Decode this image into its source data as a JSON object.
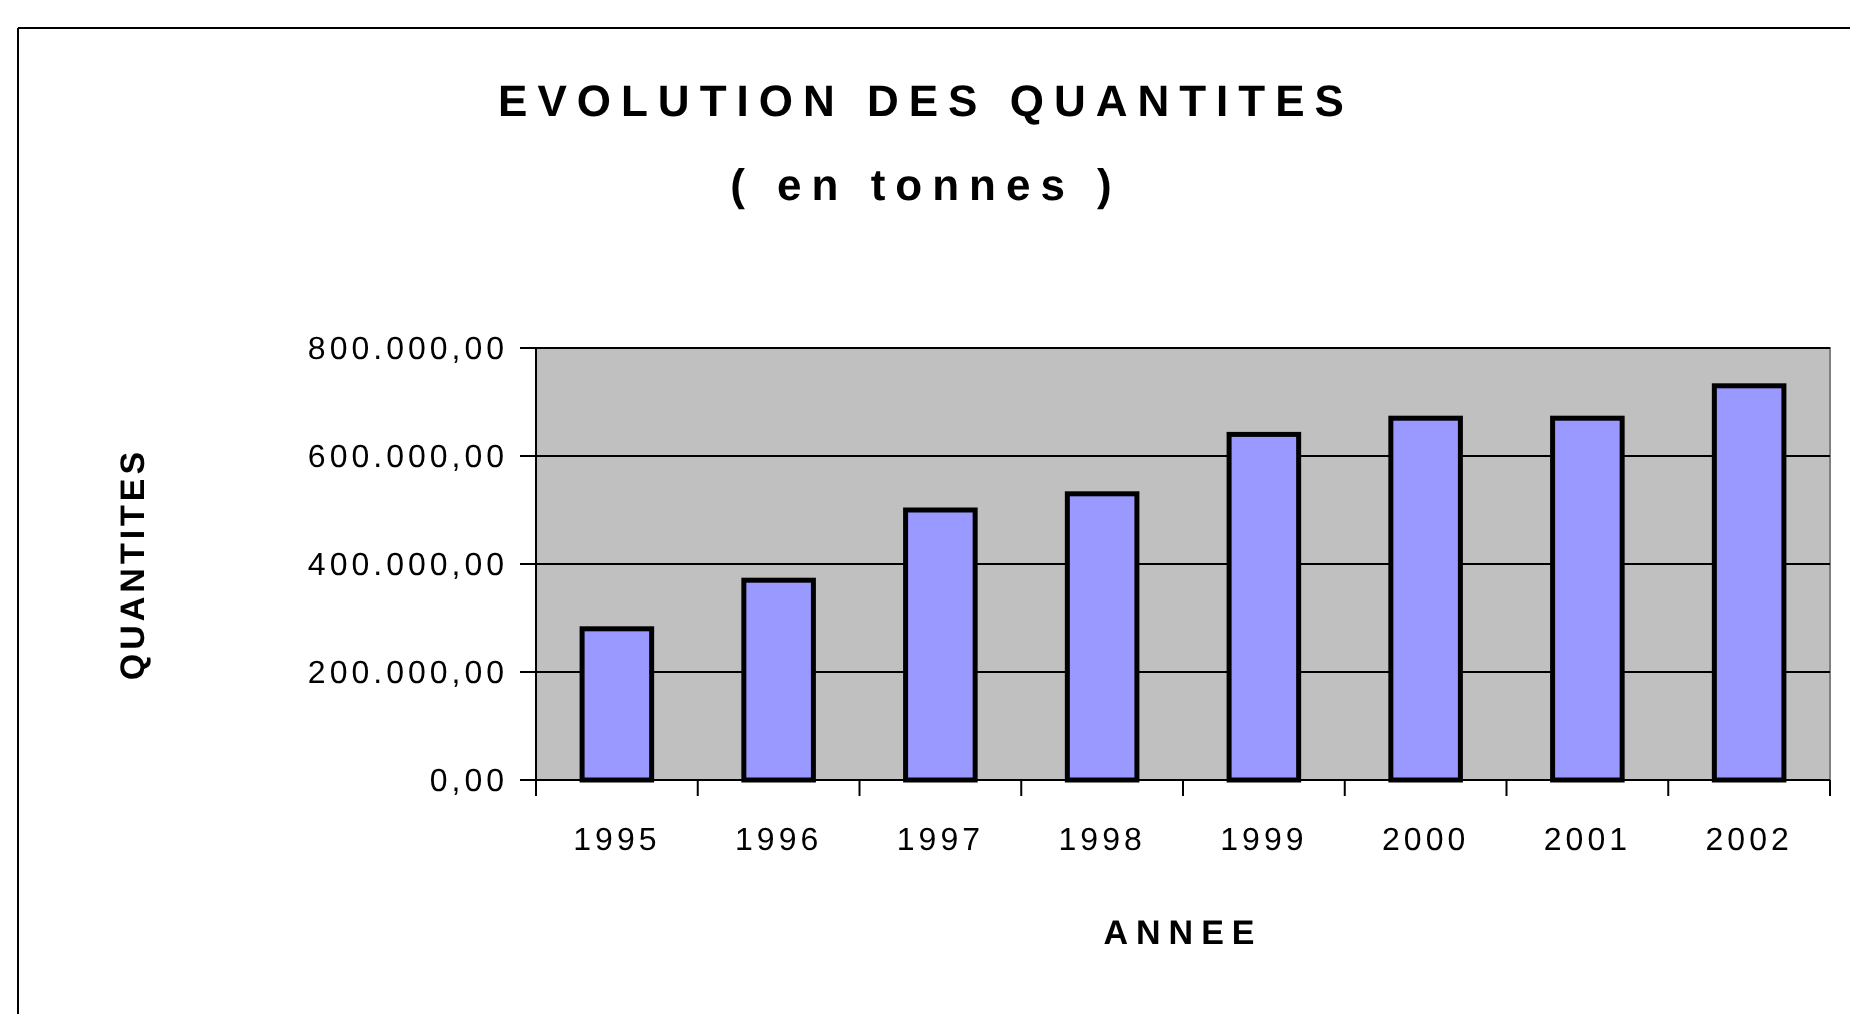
{
  "chart_data": {
    "type": "bar",
    "title": "EVOLUTION DES QUANTITES",
    "subtitle": "( en tonnes )",
    "xlabel": "ANNEE",
    "ylabel": "QUANTITES",
    "categories": [
      "1995",
      "1996",
      "1997",
      "1998",
      "1999",
      "2000",
      "2001",
      "2002"
    ],
    "values": [
      280000,
      370000,
      500000,
      530000,
      640000,
      670000,
      670000,
      730000
    ],
    "color": "#9999ff",
    "ylim": [
      0,
      800000
    ],
    "yticks": [
      {
        "value": 0,
        "label": "0,00"
      },
      {
        "value": 200000,
        "label": "200.000,00"
      },
      {
        "value": 400000,
        "label": "400.000,00"
      },
      {
        "value": 600000,
        "label": "600.000,00"
      },
      {
        "value": 800000,
        "label": "800.000,00"
      }
    ],
    "grid": "y"
  }
}
